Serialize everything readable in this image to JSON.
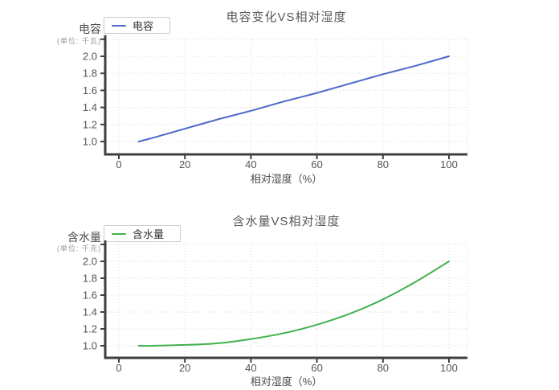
{
  "page": {
    "background": "#ffffff"
  },
  "charts": [
    {
      "title": "电容变化VS相对湿度",
      "legend": {
        "label": "电容"
      },
      "y_axis_name": "电容",
      "y_axis_unit": "(单位: 千瓦)",
      "x_axis_label": "相对湿度（%）"
    },
    {
      "title": "含水量VS相对湿度",
      "legend": {
        "label": "含水量"
      },
      "y_axis_name": "含水量",
      "y_axis_unit": "(单位: 千克)",
      "x_axis_label": "相对湿度（%）"
    }
  ],
  "chart_data": [
    {
      "type": "line",
      "title": "电容变化VS相对湿度",
      "xlabel": "相对湿度（%）",
      "ylabel": "电容 (单位: 千瓦)",
      "x_ticks": [
        0,
        20,
        40,
        60,
        80,
        100
      ],
      "y_ticks": [
        1.0,
        1.2,
        1.4,
        1.6,
        1.8,
        2.0
      ],
      "xlim": [
        -4,
        106
      ],
      "ylim": [
        0.85,
        2.2
      ],
      "grid": true,
      "legend_position": "top-left",
      "series": [
        {
          "name": "电容",
          "color": "#4a68c8",
          "smooth": false,
          "x": [
            6,
            10,
            20,
            30,
            40,
            50,
            60,
            70,
            80,
            90,
            100
          ],
          "y": [
            1.0,
            1.04,
            1.15,
            1.26,
            1.36,
            1.47,
            1.57,
            1.68,
            1.79,
            1.89,
            2.0
          ]
        }
      ]
    },
    {
      "type": "line",
      "title": "含水量VS相对湿度",
      "xlabel": "相对湿度（%）",
      "ylabel": "含水量 (单位: 千克)",
      "x_ticks": [
        0,
        20,
        40,
        60,
        80,
        100
      ],
      "y_ticks": [
        1.0,
        1.2,
        1.4,
        1.6,
        1.8,
        2.0
      ],
      "xlim": [
        -4,
        106
      ],
      "ylim": [
        0.86,
        2.2
      ],
      "grid": true,
      "legend_position": "top-left",
      "series": [
        {
          "name": "含水量",
          "color": "#41b14d",
          "smooth": true,
          "x": [
            6,
            10,
            20,
            30,
            40,
            50,
            60,
            70,
            80,
            90,
            100
          ],
          "y": [
            1.0,
            1.0,
            1.01,
            1.03,
            1.08,
            1.15,
            1.25,
            1.38,
            1.55,
            1.76,
            2.0
          ]
        }
      ]
    }
  ],
  "style": {
    "grid_color": "#d4d4d4",
    "axis_color": "#3f3f3f",
    "tick_label_color": "#555555",
    "title_color": "#595959"
  }
}
